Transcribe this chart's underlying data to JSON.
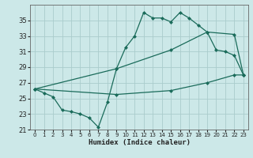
{
  "xlabel": "Humidex (Indice chaleur)",
  "bg_color": "#cce8e8",
  "grid_color": "#aacccc",
  "line_color": "#1a6b5a",
  "xlim": [
    -0.5,
    23.5
  ],
  "ylim": [
    21,
    37
  ],
  "yticks": [
    21,
    23,
    25,
    27,
    29,
    31,
    33,
    35
  ],
  "xticks": [
    0,
    1,
    2,
    3,
    4,
    5,
    6,
    7,
    8,
    9,
    10,
    11,
    12,
    13,
    14,
    15,
    16,
    17,
    18,
    19,
    20,
    21,
    22,
    23
  ],
  "line1_x": [
    0,
    1,
    2,
    3,
    4,
    5,
    6,
    7,
    8,
    9,
    10,
    11,
    12,
    13,
    14,
    15,
    16,
    17,
    18,
    19,
    20,
    21,
    22,
    23
  ],
  "line1_y": [
    26.2,
    25.7,
    25.2,
    23.5,
    23.3,
    23.0,
    22.5,
    21.3,
    24.5,
    28.8,
    31.5,
    33.0,
    36.0,
    35.3,
    35.3,
    34.8,
    36.0,
    35.3,
    34.4,
    33.5,
    31.2,
    31.0,
    30.5,
    28.0
  ],
  "line2_x": [
    0,
    9,
    15,
    19,
    22,
    23
  ],
  "line2_y": [
    26.2,
    28.8,
    31.2,
    33.5,
    33.2,
    28.0
  ],
  "line3_x": [
    0,
    9,
    15,
    19,
    22,
    23
  ],
  "line3_y": [
    26.2,
    25.5,
    26.0,
    27.0,
    28.0,
    28.0
  ]
}
